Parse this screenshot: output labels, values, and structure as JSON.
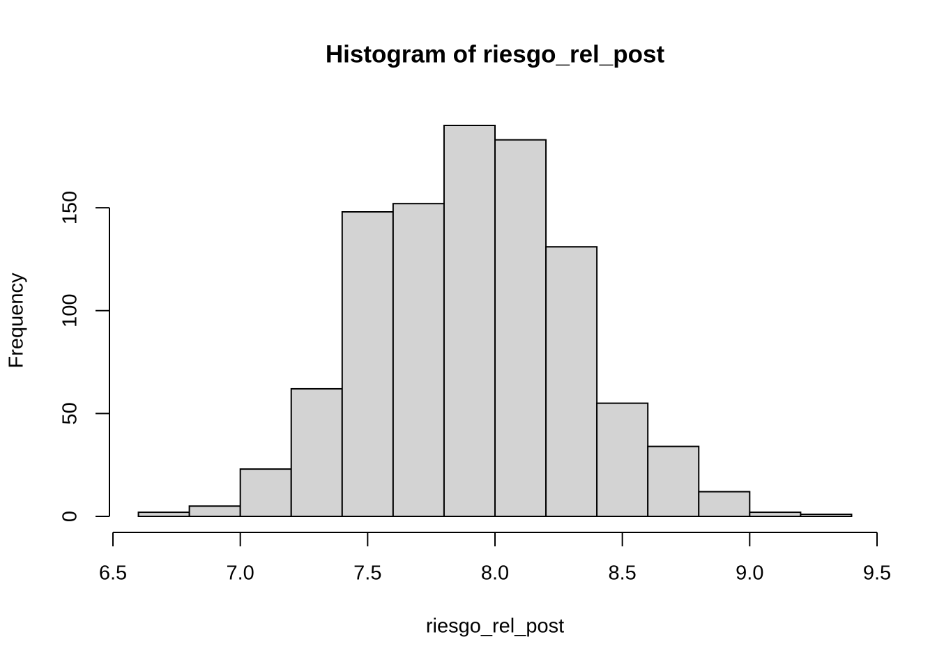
{
  "chart_data": {
    "type": "histogram",
    "title": "Histogram of riesgo_rel_post",
    "x_label": "riesgo_rel_post",
    "y_label": "Frequency",
    "bins": [
      6.6,
      6.8,
      7.0,
      7.2,
      7.4,
      7.6,
      7.8,
      8.0,
      8.2,
      8.4,
      8.6,
      8.8,
      9.0,
      9.2,
      9.4
    ],
    "values": [
      2,
      5,
      23,
      62,
      148,
      152,
      190,
      183,
      131,
      55,
      34,
      12,
      2,
      1
    ],
    "color": "#d3d3d3",
    "xlim": [
      6.5,
      9.5
    ],
    "xticks": [
      6.5,
      {
        "value": 7,
        "label": "7.0"
      },
      7.5,
      {
        "value": 8,
        "label": "8.0"
      },
      8.5,
      {
        "value": 9,
        "label": "9.0"
      },
      9.5
    ],
    "ylim": [
      0,
      190
    ],
    "yticks": [
      0,
      50,
      100,
      150
    ]
  }
}
